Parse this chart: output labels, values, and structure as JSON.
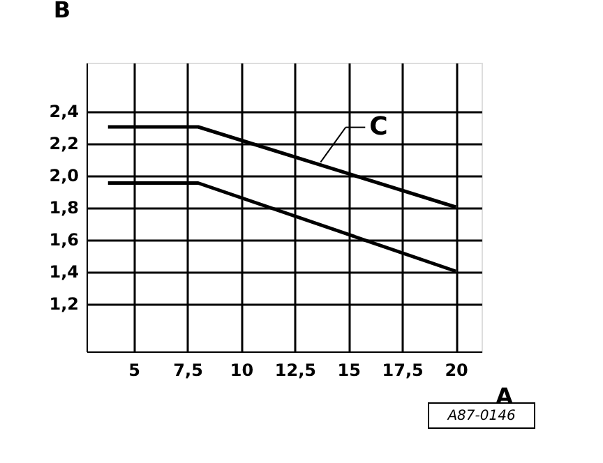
{
  "chart_data": {
    "type": "line",
    "xlabel": "A",
    "ylabel": "B",
    "xlim": [
      2.8,
      21.2
    ],
    "ylim": [
      0.9,
      2.7
    ],
    "xticks": [
      5,
      {
        "value": 7.5,
        "label": "7,5"
      },
      10,
      {
        "value": 12.5,
        "label": "12,5"
      },
      15,
      {
        "value": 17.5,
        "label": "17,5"
      },
      20
    ],
    "yticks": [
      {
        "value": 1.2,
        "label": "1,2"
      },
      {
        "value": 1.4,
        "label": "1,4"
      },
      {
        "value": 1.6,
        "label": "1,6"
      },
      {
        "value": 1.8,
        "label": "1,8"
      },
      {
        "value": 2.0,
        "label": "2,0"
      },
      {
        "value": 2.2,
        "label": "2,2"
      },
      {
        "value": 2.4,
        "label": "2,4"
      }
    ],
    "grid": true,
    "line_style": "solid",
    "marker": "none",
    "series": [
      {
        "color": "#000000",
        "x": [
          3.8,
          8,
          20
        ],
        "values": [
          2.3,
          2.3,
          1.8
        ]
      },
      {
        "color": "#000000",
        "x": [
          3.8,
          8,
          20
        ],
        "values": [
          1.95,
          1.95,
          1.4
        ]
      }
    ],
    "annotations": [
      {
        "text": "C",
        "x": 13.7,
        "y": 2.08
      },
      "A87-0146"
    ]
  }
}
